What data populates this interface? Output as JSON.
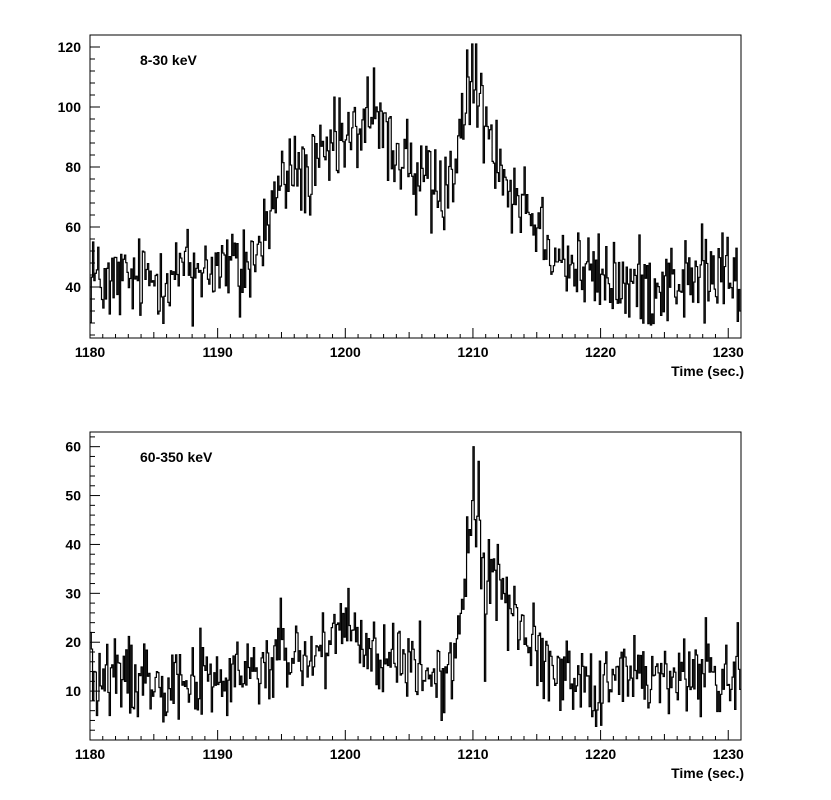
{
  "chart_data": [
    {
      "type": "line",
      "step": true,
      "annotation": "8-30 keV",
      "xlabel": "Time (sec.)",
      "ylabel": "",
      "xlim": [
        1180,
        1231
      ],
      "ylim": [
        23,
        124
      ],
      "xticks": [
        1180,
        1190,
        1200,
        1210,
        1220,
        1230
      ],
      "yticks": [
        40,
        60,
        80,
        100,
        120
      ],
      "grid": false,
      "anchors": [
        [
          1180,
          41
        ],
        [
          1182,
          42
        ],
        [
          1184,
          42
        ],
        [
          1186,
          44
        ],
        [
          1188,
          47
        ],
        [
          1190,
          47
        ],
        [
          1192,
          46
        ],
        [
          1193,
          50
        ],
        [
          1194,
          62
        ],
        [
          1195,
          74
        ],
        [
          1196,
          80
        ],
        [
          1197,
          77
        ],
        [
          1198,
          80
        ],
        [
          1199,
          85
        ],
        [
          1200,
          87
        ],
        [
          1201,
          92
        ],
        [
          1202,
          97
        ],
        [
          1203,
          90
        ],
        [
          1204,
          85
        ],
        [
          1205,
          83
        ],
        [
          1206,
          76
        ],
        [
          1207,
          72
        ],
        [
          1208,
          75
        ],
        [
          1209,
          88
        ],
        [
          1210,
          104
        ],
        [
          1211,
          95
        ],
        [
          1212,
          85
        ],
        [
          1213,
          75
        ],
        [
          1214,
          68
        ],
        [
          1215,
          62
        ],
        [
          1216,
          56
        ],
        [
          1217,
          50
        ],
        [
          1218,
          46
        ],
        [
          1220,
          43
        ],
        [
          1222,
          41
        ],
        [
          1224,
          41
        ],
        [
          1226,
          42
        ],
        [
          1228,
          42
        ],
        [
          1229.5,
          44
        ],
        [
          1231,
          38
        ]
      ],
      "noise": 7,
      "spikes": [
        [
          1180.2,
          55
        ],
        [
          1181.0,
          33
        ],
        [
          1181.6,
          31
        ],
        [
          1188.0,
          27
        ],
        [
          1191.8,
          30
        ],
        [
          1192.0,
          59
        ],
        [
          1194.4,
          75
        ],
        [
          1197.3,
          64
        ],
        [
          1199.6,
          103
        ],
        [
          1201.8,
          110
        ],
        [
          1202.3,
          113
        ],
        [
          1203.1,
          98
        ],
        [
          1205.6,
          64
        ],
        [
          1206.7,
          58
        ],
        [
          1207.4,
          82
        ],
        [
          1209.6,
          119
        ],
        [
          1209.9,
          121
        ],
        [
          1210.2,
          121
        ],
        [
          1211.0,
          100
        ],
        [
          1213.0,
          58
        ],
        [
          1214.1,
          80
        ],
        [
          1222.3,
          30
        ],
        [
          1224.0,
          31
        ],
        [
          1226.6,
          30
        ],
        [
          1227.9,
          61
        ],
        [
          1229.6,
          58
        ],
        [
          1230.9,
          32
        ]
      ]
    },
    {
      "type": "line",
      "step": true,
      "annotation": "60-350 keV",
      "xlabel": "Time (sec.)",
      "ylabel": "",
      "xlim": [
        1180,
        1231
      ],
      "ylim": [
        0,
        63
      ],
      "xticks": [
        1180,
        1190,
        1200,
        1210,
        1220,
        1230
      ],
      "yticks": [
        10,
        20,
        30,
        40,
        50,
        60
      ],
      "grid": false,
      "anchors": [
        [
          1180,
          13
        ],
        [
          1182,
          13
        ],
        [
          1184,
          13
        ],
        [
          1186,
          13
        ],
        [
          1188,
          13
        ],
        [
          1190,
          12
        ],
        [
          1192,
          13
        ],
        [
          1194,
          15
        ],
        [
          1196,
          17
        ],
        [
          1198,
          17
        ],
        [
          1199.5,
          20
        ],
        [
          1200.2,
          24
        ],
        [
          1201,
          19
        ],
        [
          1203,
          17
        ],
        [
          1205,
          15
        ],
        [
          1207,
          13
        ],
        [
          1208,
          12
        ],
        [
          1208.7,
          20
        ],
        [
          1209.3,
          30
        ],
        [
          1209.8,
          42
        ],
        [
          1210.2,
          50
        ],
        [
          1210.6,
          38
        ],
        [
          1211,
          30
        ],
        [
          1211.6,
          34
        ],
        [
          1212.3,
          30
        ],
        [
          1213,
          27
        ],
        [
          1214,
          22
        ],
        [
          1215,
          18
        ],
        [
          1216,
          15
        ],
        [
          1218,
          13
        ],
        [
          1220,
          12
        ],
        [
          1222,
          13
        ],
        [
          1224,
          13
        ],
        [
          1226,
          13
        ],
        [
          1228,
          13
        ],
        [
          1231,
          12
        ]
      ],
      "noise": 4,
      "spikes": [
        [
          1180.1,
          22
        ],
        [
          1180.5,
          5
        ],
        [
          1181.5,
          5
        ],
        [
          1190.7,
          5
        ],
        [
          1194.9,
          29
        ],
        [
          1198.2,
          26
        ],
        [
          1200.3,
          31
        ],
        [
          1207.6,
          4
        ],
        [
          1210.0,
          60
        ],
        [
          1210.4,
          57
        ],
        [
          1210.9,
          12
        ],
        [
          1211.3,
          41
        ],
        [
          1211.9,
          40
        ],
        [
          1214.8,
          28
        ],
        [
          1220.0,
          3
        ],
        [
          1228.3,
          25
        ],
        [
          1230.8,
          24
        ]
      ]
    }
  ]
}
